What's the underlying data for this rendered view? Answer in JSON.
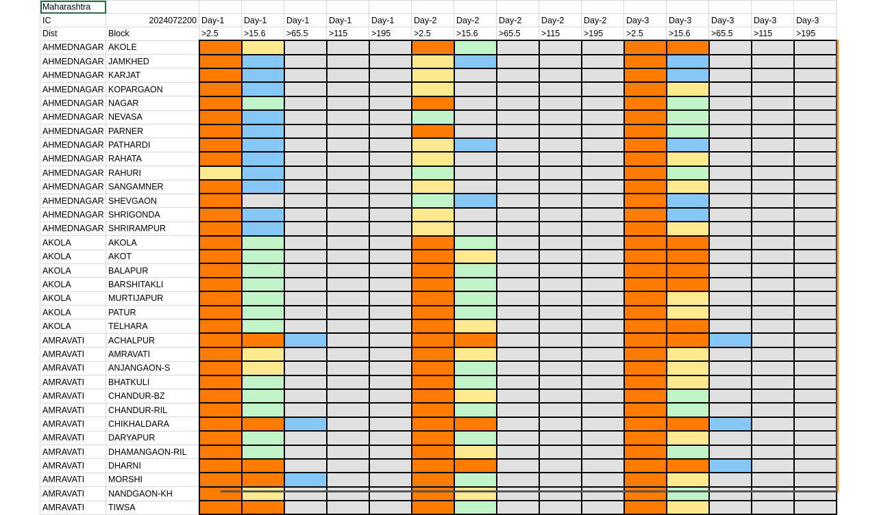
{
  "sheet": {
    "title_cell": "Maharashtra",
    "ic_label": "IC",
    "ic_value": "2024072200",
    "dist_label": "Dist",
    "block_label": "Block",
    "day_headers": [
      "Day-1",
      "Day-1",
      "Day-1",
      "Day-1",
      "Day-1",
      "Day-2",
      "Day-2",
      "Day-2",
      "Day-2",
      "Day-2",
      "Day-3",
      "Day-3",
      "Day-3",
      "Day-3",
      "Day-3"
    ],
    "thresholds": [
      ">2.5",
      ">15.6",
      ">65.5",
      ">115",
      ">195",
      ">2.5",
      ">15.6",
      ">65.5",
      ">115",
      ">195",
      ">2.5",
      ">15.6",
      ">65.5",
      ">115",
      ">195"
    ],
    "color_legend": {
      "o": "#ff7c00",
      "y": "#ffe98f",
      "b": "#86c9f6",
      "g": "#c1f5c8",
      "n": "#e0e0e0"
    },
    "rows": [
      {
        "dist": "AHMEDNAGAR",
        "block": "AKOLE",
        "cells": "oynnnognnnoonnn"
      },
      {
        "dist": "AHMEDNAGAR",
        "block": "JAMKHED",
        "cells": "obnnnybnnnobnnn"
      },
      {
        "dist": "AHMEDNAGAR",
        "block": "KARJAT",
        "cells": "obnnnynnnnobnnn"
      },
      {
        "dist": "AHMEDNAGAR",
        "block": "KOPARGAON",
        "cells": "obnnnynnnnoynnn"
      },
      {
        "dist": "AHMEDNAGAR",
        "block": "NAGAR",
        "cells": "ognnnonnnnognnn"
      },
      {
        "dist": "AHMEDNAGAR",
        "block": "NEVASA",
        "cells": "obnnngnnnnognnn"
      },
      {
        "dist": "AHMEDNAGAR",
        "block": "PARNER",
        "cells": "obnnnonnnnognnn"
      },
      {
        "dist": "AHMEDNAGAR",
        "block": "PATHARDI",
        "cells": "obnnnybnnnobnnn"
      },
      {
        "dist": "AHMEDNAGAR",
        "block": "RAHATA",
        "cells": "obnnnynnnnoynnn"
      },
      {
        "dist": "AHMEDNAGAR",
        "block": "RAHURI",
        "cells": "ybnnngnnnnognnn"
      },
      {
        "dist": "AHMEDNAGAR",
        "block": "SANGAMNER",
        "cells": "obnnnynnnnoynnn"
      },
      {
        "dist": "AHMEDNAGAR",
        "block": "SHEVGAON",
        "cells": "onnnngbnnnobnnn"
      },
      {
        "dist": "AHMEDNAGAR",
        "block": "SHRIGONDA",
        "cells": "obnnnynnnnobnnn"
      },
      {
        "dist": "AHMEDNAGAR",
        "block": "SHRIRAMPUR",
        "cells": "obnnnynnnnoynnn"
      },
      {
        "dist": "AKOLA",
        "block": "AKOLA",
        "cells": "ognnnognnnoonnn"
      },
      {
        "dist": "AKOLA",
        "block": "AKOT",
        "cells": "ognnnoynnnoonnn"
      },
      {
        "dist": "AKOLA",
        "block": "BALAPUR",
        "cells": "ognnnognnnoonnn"
      },
      {
        "dist": "AKOLA",
        "block": "BARSHITAKLI",
        "cells": "ognnnognnnoonnn"
      },
      {
        "dist": "AKOLA",
        "block": "MURTIJAPUR",
        "cells": "ognnnognnnoynnn"
      },
      {
        "dist": "AKOLA",
        "block": "PATUR",
        "cells": "ognnnognnnoynnn"
      },
      {
        "dist": "AKOLA",
        "block": "TELHARA",
        "cells": "ognnnoynnnoonnn"
      },
      {
        "dist": "AMRAVATI",
        "block": "ACHALPUR",
        "cells": "oobnnoonnnoobnn"
      },
      {
        "dist": "AMRAVATI",
        "block": "AMRAVATI",
        "cells": "oynnnoynnnoynnn"
      },
      {
        "dist": "AMRAVATI",
        "block": "ANJANGAON-S",
        "cells": "oynnnognnnoynnn"
      },
      {
        "dist": "AMRAVATI",
        "block": "BHATKULI",
        "cells": "ognnnognnnoynnn"
      },
      {
        "dist": "AMRAVATI",
        "block": "CHANDUR-BZ",
        "cells": "ognnnoynnnognnn"
      },
      {
        "dist": "AMRAVATI",
        "block": "CHANDUR-RIL",
        "cells": "ognnnognnnognnn"
      },
      {
        "dist": "AMRAVATI",
        "block": "CHIKHALDARA",
        "cells": "oobnnoonnnoobnn"
      },
      {
        "dist": "AMRAVATI",
        "block": "DARYAPUR",
        "cells": "ognnnognnnoynnn"
      },
      {
        "dist": "AMRAVATI",
        "block": "DHAMANGAON-RIL",
        "cells": "ognnnoynnnognnn"
      },
      {
        "dist": "AMRAVATI",
        "block": "DHARNI",
        "cells": "oonnnoonnnoobnn"
      },
      {
        "dist": "AMRAVATI",
        "block": "MORSHI",
        "cells": "oobnnognnnoynnn"
      },
      {
        "dist": "AMRAVATI",
        "block": "NANDGAON-KH",
        "cells": "oynnnoynnnognnn"
      },
      {
        "dist": "AMRAVATI",
        "block": "TIWSA",
        "cells": "oonnnognnnoynnn"
      }
    ]
  }
}
